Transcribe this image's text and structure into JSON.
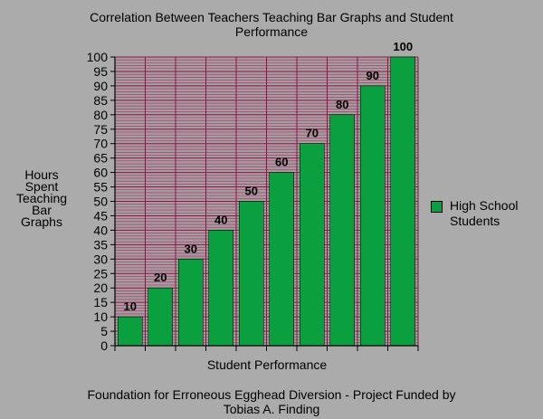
{
  "chart_data": {
    "type": "bar",
    "title_lines": [
      "Correlation Between Teachers Teaching Bar Graphs and Student",
      "Performance"
    ],
    "xlabel": "Student Performance",
    "ylabel": "Hours Spent Teaching Bar Graphs",
    "ylabel_lines": [
      "Hours",
      "Spent",
      "Teaching",
      "Bar",
      "Graphs"
    ],
    "ylim": [
      0,
      100
    ],
    "y_ticks": [
      0,
      5,
      10,
      15,
      20,
      25,
      30,
      35,
      40,
      45,
      50,
      55,
      60,
      65,
      70,
      75,
      80,
      85,
      90,
      95,
      100
    ],
    "categories": [
      "",
      "",
      "",
      "",
      "",
      "",
      "",
      "",
      "",
      ""
    ],
    "series": [
      {
        "name": "High School Students",
        "values": [
          10,
          20,
          30,
          40,
          50,
          60,
          70,
          80,
          90,
          100
        ],
        "color": "#0a9f3f"
      }
    ],
    "data_labels": [
      "10",
      "20",
      "30",
      "40",
      "50",
      "60",
      "70",
      "80",
      "90",
      "100"
    ],
    "legend": {
      "position": "right",
      "label_lines": [
        "High School",
        "Students"
      ]
    },
    "grid": true,
    "colors": {
      "background": "#ababab",
      "plot_background": "#a99aa0",
      "gridline": "#8c1548",
      "axis": "#000000",
      "bar": "#0a9f3f"
    }
  },
  "footer_lines": [
    "Foundation for Erroneous Egghead Diversion - Project Funded by",
    "Tobias A. Finding"
  ]
}
